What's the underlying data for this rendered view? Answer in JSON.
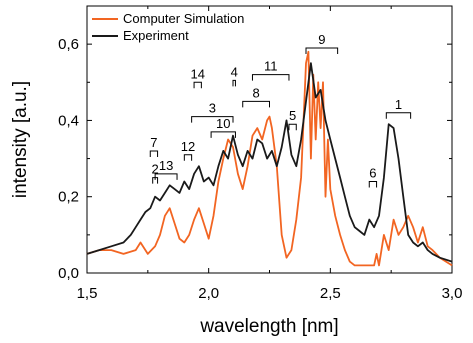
{
  "chart_data": {
    "type": "line",
    "xlabel": "wavelength [nm]",
    "ylabel": "intensity [a.u.]",
    "xlim": [
      1.5,
      3.0
    ],
    "ylim": [
      0.0,
      0.7
    ],
    "x_ticks": [
      "1,5",
      "2,0",
      "2,5",
      "3,0"
    ],
    "x_tick_values": [
      1.5,
      2.0,
      2.5,
      3.0
    ],
    "y_ticks": [
      "0,0",
      "0,2",
      "0,4",
      "0,6"
    ],
    "y_tick_values": [
      0.0,
      0.2,
      0.4,
      0.6
    ],
    "legend_position": "top-left",
    "series": [
      {
        "name": "Computer Simulation",
        "color": "#f26522",
        "x": [
          1.5,
          1.55,
          1.6,
          1.65,
          1.7,
          1.72,
          1.75,
          1.78,
          1.8,
          1.82,
          1.84,
          1.86,
          1.88,
          1.9,
          1.92,
          1.94,
          1.96,
          1.98,
          2.0,
          2.02,
          2.04,
          2.06,
          2.08,
          2.1,
          2.12,
          2.14,
          2.16,
          2.18,
          2.2,
          2.22,
          2.24,
          2.25,
          2.26,
          2.28,
          2.3,
          2.32,
          2.34,
          2.36,
          2.38,
          2.4,
          2.41,
          2.42,
          2.43,
          2.44,
          2.45,
          2.46,
          2.47,
          2.48,
          2.49,
          2.5,
          2.52,
          2.54,
          2.56,
          2.58,
          2.6,
          2.62,
          2.64,
          2.66,
          2.68,
          2.69,
          2.7,
          2.72,
          2.74,
          2.76,
          2.78,
          2.8,
          2.82,
          2.84,
          2.86,
          2.88,
          2.9,
          2.92,
          2.95,
          3.0
        ],
        "y": [
          0.05,
          0.06,
          0.06,
          0.05,
          0.06,
          0.08,
          0.05,
          0.07,
          0.1,
          0.15,
          0.17,
          0.13,
          0.09,
          0.08,
          0.1,
          0.14,
          0.17,
          0.13,
          0.09,
          0.15,
          0.24,
          0.3,
          0.35,
          0.33,
          0.26,
          0.22,
          0.28,
          0.36,
          0.38,
          0.35,
          0.4,
          0.41,
          0.38,
          0.28,
          0.1,
          0.04,
          0.06,
          0.14,
          0.25,
          0.55,
          0.58,
          0.3,
          0.52,
          0.35,
          0.5,
          0.38,
          0.5,
          0.2,
          0.35,
          0.22,
          0.15,
          0.1,
          0.06,
          0.03,
          0.02,
          0.02,
          0.02,
          0.02,
          0.02,
          0.05,
          0.02,
          0.1,
          0.06,
          0.14,
          0.1,
          0.12,
          0.15,
          0.12,
          0.08,
          0.12,
          0.07,
          0.06,
          0.04,
          0.02
        ]
      },
      {
        "name": "Experiment",
        "color": "#1a1a1a",
        "x": [
          1.5,
          1.55,
          1.6,
          1.65,
          1.68,
          1.7,
          1.72,
          1.74,
          1.76,
          1.78,
          1.8,
          1.82,
          1.84,
          1.86,
          1.88,
          1.9,
          1.92,
          1.94,
          1.96,
          1.98,
          2.0,
          2.02,
          2.04,
          2.06,
          2.08,
          2.1,
          2.12,
          2.14,
          2.16,
          2.18,
          2.2,
          2.22,
          2.24,
          2.26,
          2.28,
          2.3,
          2.32,
          2.34,
          2.36,
          2.38,
          2.4,
          2.42,
          2.44,
          2.46,
          2.48,
          2.5,
          2.52,
          2.54,
          2.56,
          2.58,
          2.6,
          2.62,
          2.64,
          2.66,
          2.68,
          2.7,
          2.72,
          2.74,
          2.76,
          2.78,
          2.8,
          2.82,
          2.84,
          2.86,
          2.88,
          2.9,
          2.92,
          2.95,
          3.0
        ],
        "y": [
          0.05,
          0.06,
          0.07,
          0.08,
          0.1,
          0.12,
          0.14,
          0.16,
          0.17,
          0.2,
          0.19,
          0.21,
          0.23,
          0.22,
          0.21,
          0.24,
          0.22,
          0.26,
          0.28,
          0.24,
          0.25,
          0.23,
          0.28,
          0.32,
          0.3,
          0.36,
          0.31,
          0.28,
          0.32,
          0.3,
          0.35,
          0.34,
          0.3,
          0.32,
          0.28,
          0.33,
          0.4,
          0.31,
          0.28,
          0.35,
          0.45,
          0.55,
          0.46,
          0.48,
          0.4,
          0.35,
          0.3,
          0.25,
          0.2,
          0.15,
          0.12,
          0.11,
          0.1,
          0.14,
          0.12,
          0.15,
          0.25,
          0.39,
          0.38,
          0.3,
          0.2,
          0.1,
          0.08,
          0.07,
          0.08,
          0.06,
          0.05,
          0.04,
          0.03
        ]
      }
    ],
    "annotations": [
      {
        "label": "1",
        "x_range": [
          2.73,
          2.83
        ],
        "y": 0.42
      },
      {
        "label": "2",
        "x_range": [
          1.77,
          1.79
        ],
        "y": 0.25
      },
      {
        "label": "3",
        "x_range": [
          1.93,
          2.1
        ],
        "y": 0.41
      },
      {
        "label": "4",
        "x_range": [
          2.1,
          2.11
        ],
        "y": 0.505
      },
      {
        "label": "5",
        "x_range": [
          2.33,
          2.36
        ],
        "y": 0.39
      },
      {
        "label": "6",
        "x_range": [
          2.66,
          2.69
        ],
        "y": 0.24
      },
      {
        "label": "7",
        "x_range": [
          1.76,
          1.79
        ],
        "y": 0.32
      },
      {
        "label": "8",
        "x_range": [
          2.14,
          2.25
        ],
        "y": 0.45
      },
      {
        "label": "9",
        "x_range": [
          2.4,
          2.53
        ],
        "y": 0.59
      },
      {
        "label": "10",
        "x_range": [
          2.01,
          2.11
        ],
        "y": 0.37
      },
      {
        "label": "11",
        "x_range": [
          2.18,
          2.33
        ],
        "y": 0.52
      },
      {
        "label": "12",
        "x_range": [
          1.9,
          1.93
        ],
        "y": 0.31
      },
      {
        "label": "13",
        "x_range": [
          1.78,
          1.87
        ],
        "y": 0.26
      },
      {
        "label": "14",
        "x_range": [
          1.94,
          1.97
        ],
        "y": 0.5
      }
    ]
  }
}
